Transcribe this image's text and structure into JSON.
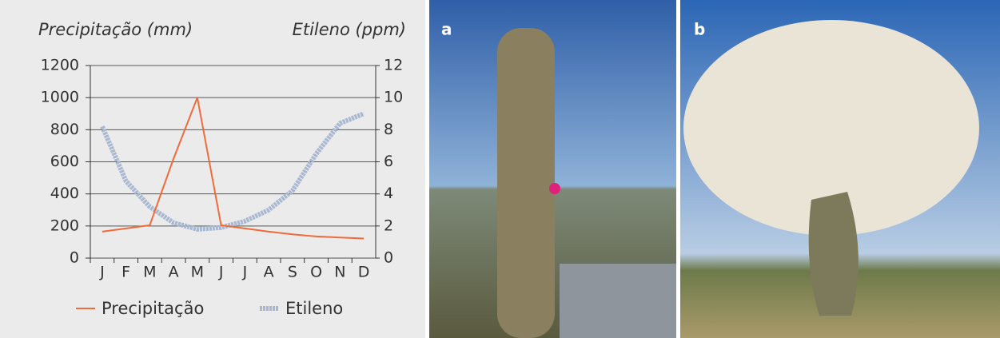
{
  "chart_data": {
    "type": "line",
    "y_title": "Precipitação (mm)",
    "y2_title": "Etileno (ppm)",
    "categories": [
      "J",
      "F",
      "M",
      "A",
      "M",
      "J",
      "J",
      "A",
      "S",
      "O",
      "N",
      "D"
    ],
    "series": [
      {
        "name": "Precipitação",
        "color": "#f06a3a",
        "values": [
          165,
          185,
          205,
          620,
          1000,
          205,
          185,
          165,
          148,
          135,
          128,
          122
        ]
      },
      {
        "name": "Etileno",
        "color": "#a9b8d2",
        "axis": "y2",
        "values": [
          8.2,
          4.8,
          3.2,
          2.2,
          1.8,
          1.9,
          2.3,
          3.0,
          4.2,
          6.5,
          8.4,
          9.0
        ]
      }
    ],
    "ylim": [
      0,
      1200
    ],
    "yticks": [
      0,
      200,
      400,
      600,
      800,
      1000,
      1200
    ],
    "y2lim": [
      0,
      12
    ],
    "y2ticks": [
      0,
      2,
      4,
      6,
      8,
      10,
      12
    ],
    "grid": true,
    "legend": "bottom"
  },
  "panels": [
    {
      "label": "a"
    },
    {
      "label": "b"
    }
  ]
}
